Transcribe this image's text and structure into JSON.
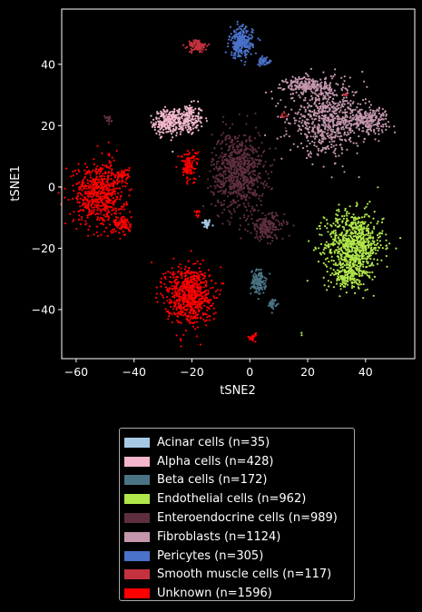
{
  "chart_data": {
    "type": "scatter",
    "xlabel": "tSNE2",
    "ylabel": "tSNE1",
    "xlim": [
      -65,
      57
    ],
    "ylim": [
      -56,
      58
    ],
    "xticks": [
      -60,
      -40,
      -20,
      0,
      20,
      40
    ],
    "yticks": [
      -40,
      -20,
      0,
      20,
      40
    ],
    "xtick_labels": [
      "−60",
      "−40",
      "−20",
      "0",
      "20",
      "40"
    ],
    "ytick_labels": [
      "−40",
      "−20",
      "0",
      "20",
      "40"
    ],
    "legend_position": "below",
    "series": [
      {
        "name": "Acinar cells (n=35)",
        "color": "#a6cae6",
        "clusters": [
          {
            "cx": -15,
            "cy": -12,
            "sx": 0.8,
            "sy": 0.8,
            "n": 35
          }
        ]
      },
      {
        "name": "Alpha cells (n=428)",
        "color": "#f1b6cb",
        "clusters": [
          {
            "cx": -22,
            "cy": 22,
            "sx": 3.0,
            "sy": 2.5,
            "n": 230
          },
          {
            "cx": -29,
            "cy": 21,
            "sx": 2.0,
            "sy": 2.0,
            "n": 198
          }
        ]
      },
      {
        "name": "Beta cells (n=172)",
        "color": "#4a7383",
        "clusters": [
          {
            "cx": 3,
            "cy": -31,
            "sx": 1.3,
            "sy": 2.0,
            "n": 130
          },
          {
            "cx": 8,
            "cy": -38,
            "sx": 0.6,
            "sy": 0.8,
            "n": 42
          }
        ]
      },
      {
        "name": "Endothelial cells (n=962)",
        "color": "#b0e64a",
        "clusters": [
          {
            "cx": 36,
            "cy": -19,
            "sx": 5.0,
            "sy": 5.5,
            "n": 820
          },
          {
            "cx": 34,
            "cy": -29,
            "sx": 2.5,
            "sy": 2.5,
            "n": 140
          },
          {
            "cx": 18,
            "cy": -48,
            "sx": 0.3,
            "sy": 0.3,
            "n": 2
          }
        ]
      },
      {
        "name": "Enteroendocrine cells (n=989)",
        "color": "#5e2f3e",
        "clusters": [
          {
            "cx": -4,
            "cy": 5,
            "sx": 4.5,
            "sy": 6.5,
            "n": 780
          },
          {
            "cx": 6,
            "cy": -13,
            "sx": 3.0,
            "sy": 2.2,
            "n": 190
          },
          {
            "cx": -49,
            "cy": 22,
            "sx": 0.6,
            "sy": 0.6,
            "n": 19
          }
        ]
      },
      {
        "name": "Fibroblasts (n=1124)",
        "color": "#c396ad",
        "clusters": [
          {
            "cx": 27,
            "cy": 22,
            "sx": 6.5,
            "sy": 5.5,
            "n": 700
          },
          {
            "cx": 41,
            "cy": 22,
            "sx": 3.5,
            "sy": 2.0,
            "n": 200
          },
          {
            "cx": 20,
            "cy": 33,
            "sx": 4.0,
            "sy": 1.5,
            "n": 224
          }
        ]
      },
      {
        "name": "Pericytes (n=305)",
        "color": "#4a72cb",
        "clusters": [
          {
            "cx": -3,
            "cy": 47,
            "sx": 2.0,
            "sy": 2.5,
            "n": 260
          },
          {
            "cx": 5,
            "cy": 41,
            "sx": 1.2,
            "sy": 0.6,
            "n": 45
          }
        ]
      },
      {
        "name": "Smooth muscle cells (n=117)",
        "color": "#c5323f",
        "clusters": [
          {
            "cx": -18,
            "cy": 46,
            "sx": 1.6,
            "sy": 1.0,
            "n": 100
          },
          {
            "cx": 12,
            "cy": 23,
            "sx": 0.6,
            "sy": 0.8,
            "n": 10
          },
          {
            "cx": 33,
            "cy": 30,
            "sx": 0.4,
            "sy": 0.4,
            "n": 7
          }
        ]
      },
      {
        "name": "Unknown (n=1596)",
        "color": "#ff0000",
        "clusters": [
          {
            "cx": -52,
            "cy": -2,
            "sx": 4.5,
            "sy": 5.0,
            "n": 620
          },
          {
            "cx": -44,
            "cy": -12,
            "sx": 1.5,
            "sy": 1.5,
            "n": 90
          },
          {
            "cx": -44,
            "cy": 4,
            "sx": 1.2,
            "sy": 1.0,
            "n": 40
          },
          {
            "cx": -21,
            "cy": -35,
            "sx": 4.0,
            "sy": 4.8,
            "n": 700
          },
          {
            "cx": -21,
            "cy": 7,
            "sx": 1.5,
            "sy": 2.5,
            "n": 110
          },
          {
            "cx": 1,
            "cy": -49,
            "sx": 0.8,
            "sy": 0.8,
            "n": 26
          },
          {
            "cx": -18,
            "cy": -9,
            "sx": 0.6,
            "sy": 0.6,
            "n": 10
          }
        ]
      }
    ]
  }
}
